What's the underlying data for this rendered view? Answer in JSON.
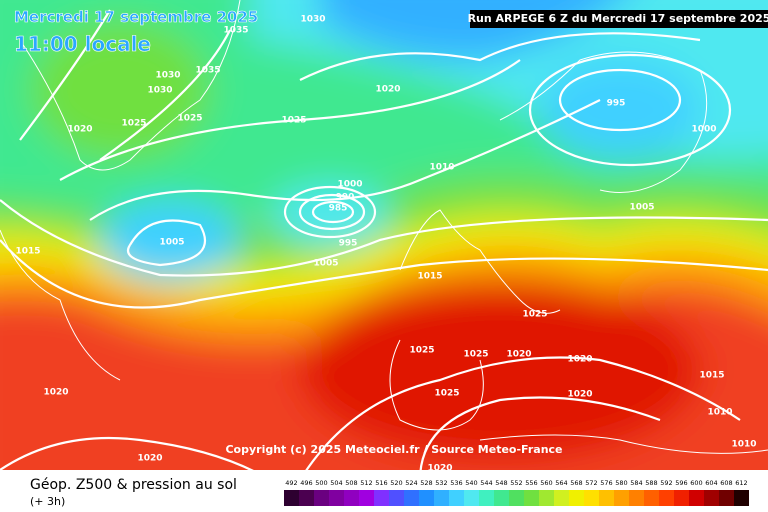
{
  "header": {
    "date": "Mercredi 17 septembre 2025",
    "time": "11:00 locale",
    "run": "Run ARPEGE 6 Z du Mercredi 17 septembre 2025"
  },
  "copyright": "Copyright (c) 2025 Meteociel.fr / Source Meteo-France",
  "legend": {
    "title": "Géop. Z500 & pression au sol",
    "subtitle": "(+ 3h)",
    "values": [
      492,
      496,
      500,
      504,
      508,
      512,
      516,
      520,
      524,
      528,
      532,
      536,
      540,
      544,
      548,
      552,
      556,
      560,
      564,
      568,
      572,
      576,
      580,
      584,
      588,
      592,
      596,
      600,
      604,
      608,
      612
    ],
    "colors": [
      "#2d0030",
      "#4b0050",
      "#6a0080",
      "#8000a0",
      "#9000c0",
      "#a000e0",
      "#8030ff",
      "#5050ff",
      "#3070ff",
      "#2090ff",
      "#30b0ff",
      "#40d0ff",
      "#50e8f0",
      "#40f0c0",
      "#40e890",
      "#50e060",
      "#70e040",
      "#a0e830",
      "#d0f020",
      "#f0f000",
      "#ffe000",
      "#ffc000",
      "#ffa000",
      "#ff8000",
      "#ff6000",
      "#ff4000",
      "#f02000",
      "#d00000",
      "#a00000",
      "#700000",
      "#200000"
    ]
  },
  "isobar_labels": [
    1030,
    1030,
    1025,
    1025,
    1020,
    1025,
    1020,
    1010,
    1000,
    990,
    985,
    995,
    1005,
    1005,
    1015,
    1020,
    995,
    1000,
    1005,
    1015,
    1025,
    1020,
    1020,
    1025,
    1025,
    1025,
    1020,
    1015,
    1010,
    1010,
    1020,
    1020,
    1030,
    1035,
    1035
  ]
}
